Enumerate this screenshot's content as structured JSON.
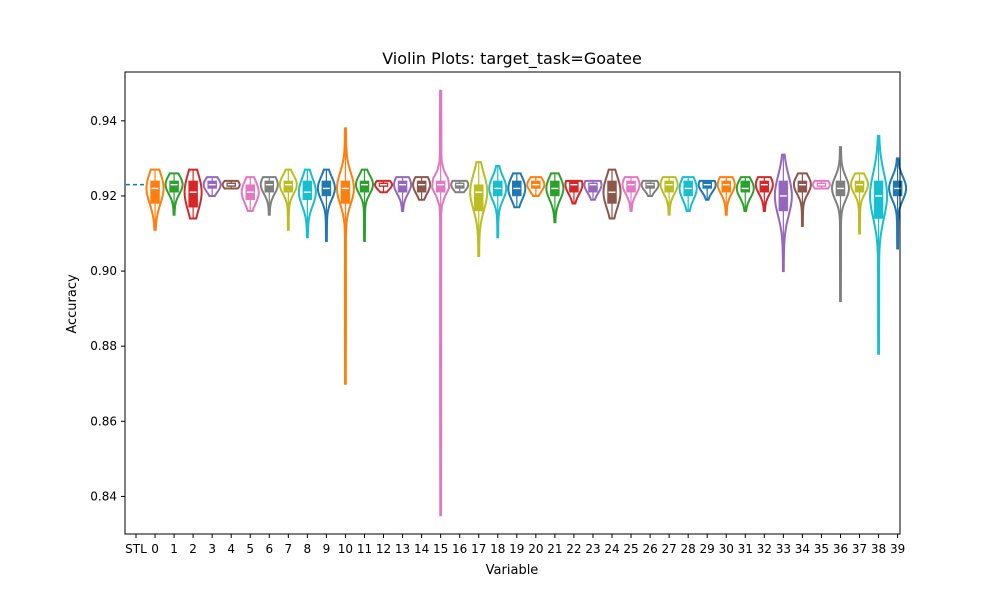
{
  "chart_data": {
    "type": "violin",
    "title": "Violin Plots: target_task=Goatee",
    "xlabel": "Variable",
    "ylabel": "Accuracy",
    "ylim": [
      0.83,
      0.953
    ],
    "yticks": [
      0.84,
      0.86,
      0.88,
      0.9,
      0.92,
      0.94
    ],
    "ytick_labels": [
      "0.84",
      "0.86",
      "0.88",
      "0.90",
      "0.92",
      "0.94"
    ],
    "categories": [
      "STL",
      "0",
      "1",
      "2",
      "3",
      "4",
      "5",
      "6",
      "7",
      "8",
      "9",
      "10",
      "11",
      "12",
      "13",
      "14",
      "15",
      "16",
      "17",
      "18",
      "19",
      "20",
      "21",
      "22",
      "23",
      "24",
      "25",
      "26",
      "27",
      "28",
      "29",
      "30",
      "31",
      "32",
      "33",
      "34",
      "35",
      "36",
      "37",
      "38",
      "39"
    ],
    "reference": {
      "label": "STL",
      "value": 0.923,
      "style": "dashed"
    },
    "palette": [
      "#ff7f0e",
      "#2ca02c",
      "#d62728",
      "#9467bd",
      "#8c564b",
      "#e377c2",
      "#7f7f7f",
      "#bcbd22",
      "#17becf",
      "#1f77b4"
    ],
    "series": [
      {
        "name": "0",
        "min": 0.911,
        "q1": 0.918,
        "median": 0.922,
        "q3": 0.924,
        "max": 0.927
      },
      {
        "name": "1",
        "min": 0.915,
        "q1": 0.921,
        "median": 0.923,
        "q3": 0.924,
        "max": 0.926
      },
      {
        "name": "2",
        "min": 0.914,
        "q1": 0.917,
        "median": 0.921,
        "q3": 0.924,
        "max": 0.927
      },
      {
        "name": "3",
        "min": 0.92,
        "q1": 0.922,
        "median": 0.923,
        "q3": 0.924,
        "max": 0.925
      },
      {
        "name": "4",
        "min": 0.922,
        "q1": 0.9225,
        "median": 0.923,
        "q3": 0.9235,
        "max": 0.924
      },
      {
        "name": "5",
        "min": 0.916,
        "q1": 0.919,
        "median": 0.921,
        "q3": 0.923,
        "max": 0.925
      },
      {
        "name": "6",
        "min": 0.915,
        "q1": 0.921,
        "median": 0.923,
        "q3": 0.924,
        "max": 0.925
      },
      {
        "name": "7",
        "min": 0.911,
        "q1": 0.921,
        "median": 0.923,
        "q3": 0.924,
        "max": 0.927
      },
      {
        "name": "8",
        "min": 0.909,
        "q1": 0.919,
        "median": 0.921,
        "q3": 0.924,
        "max": 0.927
      },
      {
        "name": "9",
        "min": 0.908,
        "q1": 0.92,
        "median": 0.922,
        "q3": 0.924,
        "max": 0.927
      },
      {
        "name": "10",
        "min": 0.87,
        "q1": 0.918,
        "median": 0.922,
        "q3": 0.924,
        "max": 0.938
      },
      {
        "name": "11",
        "min": 0.908,
        "q1": 0.921,
        "median": 0.923,
        "q3": 0.924,
        "max": 0.927
      },
      {
        "name": "12",
        "min": 0.921,
        "q1": 0.9225,
        "median": 0.923,
        "q3": 0.9235,
        "max": 0.924
      },
      {
        "name": "13",
        "min": 0.916,
        "q1": 0.921,
        "median": 0.923,
        "q3": 0.924,
        "max": 0.925
      },
      {
        "name": "14",
        "min": 0.919,
        "q1": 0.921,
        "median": 0.923,
        "q3": 0.924,
        "max": 0.925
      },
      {
        "name": "15",
        "min": 0.835,
        "q1": 0.921,
        "median": 0.923,
        "q3": 0.924,
        "max": 0.948
      },
      {
        "name": "16",
        "min": 0.921,
        "q1": 0.922,
        "median": 0.923,
        "q3": 0.9235,
        "max": 0.924
      },
      {
        "name": "17",
        "min": 0.904,
        "q1": 0.916,
        "median": 0.921,
        "q3": 0.923,
        "max": 0.929
      },
      {
        "name": "18",
        "min": 0.909,
        "q1": 0.92,
        "median": 0.922,
        "q3": 0.924,
        "max": 0.928
      },
      {
        "name": "19",
        "min": 0.917,
        "q1": 0.92,
        "median": 0.922,
        "q3": 0.924,
        "max": 0.926
      },
      {
        "name": "20",
        "min": 0.92,
        "q1": 0.922,
        "median": 0.923,
        "q3": 0.924,
        "max": 0.925
      },
      {
        "name": "21",
        "min": 0.913,
        "q1": 0.92,
        "median": 0.922,
        "q3": 0.924,
        "max": 0.926
      },
      {
        "name": "22",
        "min": 0.918,
        "q1": 0.921,
        "median": 0.923,
        "q3": 0.924,
        "max": 0.924
      },
      {
        "name": "23",
        "min": 0.919,
        "q1": 0.921,
        "median": 0.923,
        "q3": 0.9235,
        "max": 0.924
      },
      {
        "name": "24",
        "min": 0.914,
        "q1": 0.918,
        "median": 0.921,
        "q3": 0.924,
        "max": 0.927
      },
      {
        "name": "25",
        "min": 0.916,
        "q1": 0.921,
        "median": 0.923,
        "q3": 0.924,
        "max": 0.925
      },
      {
        "name": "26",
        "min": 0.92,
        "q1": 0.922,
        "median": 0.923,
        "q3": 0.9235,
        "max": 0.924
      },
      {
        "name": "27",
        "min": 0.915,
        "q1": 0.921,
        "median": 0.923,
        "q3": 0.924,
        "max": 0.925
      },
      {
        "name": "28",
        "min": 0.916,
        "q1": 0.92,
        "median": 0.922,
        "q3": 0.924,
        "max": 0.925
      },
      {
        "name": "29",
        "min": 0.919,
        "q1": 0.922,
        "median": 0.923,
        "q3": 0.924,
        "max": 0.924
      },
      {
        "name": "30",
        "min": 0.915,
        "q1": 0.921,
        "median": 0.923,
        "q3": 0.924,
        "max": 0.925
      },
      {
        "name": "31",
        "min": 0.916,
        "q1": 0.921,
        "median": 0.922,
        "q3": 0.924,
        "max": 0.925
      },
      {
        "name": "32",
        "min": 0.916,
        "q1": 0.921,
        "median": 0.923,
        "q3": 0.924,
        "max": 0.925
      },
      {
        "name": "33",
        "min": 0.9,
        "q1": 0.916,
        "median": 0.92,
        "q3": 0.924,
        "max": 0.931
      },
      {
        "name": "34",
        "min": 0.912,
        "q1": 0.921,
        "median": 0.923,
        "q3": 0.924,
        "max": 0.926
      },
      {
        "name": "35",
        "min": 0.922,
        "q1": 0.9225,
        "median": 0.923,
        "q3": 0.9235,
        "max": 0.924
      },
      {
        "name": "36",
        "min": 0.892,
        "q1": 0.92,
        "median": 0.922,
        "q3": 0.924,
        "max": 0.933
      },
      {
        "name": "37",
        "min": 0.91,
        "q1": 0.921,
        "median": 0.923,
        "q3": 0.924,
        "max": 0.926
      },
      {
        "name": "38",
        "min": 0.878,
        "q1": 0.914,
        "median": 0.92,
        "q3": 0.924,
        "max": 0.936
      },
      {
        "name": "39",
        "min": 0.906,
        "q1": 0.92,
        "median": 0.922,
        "q3": 0.924,
        "max": 0.93
      }
    ]
  }
}
